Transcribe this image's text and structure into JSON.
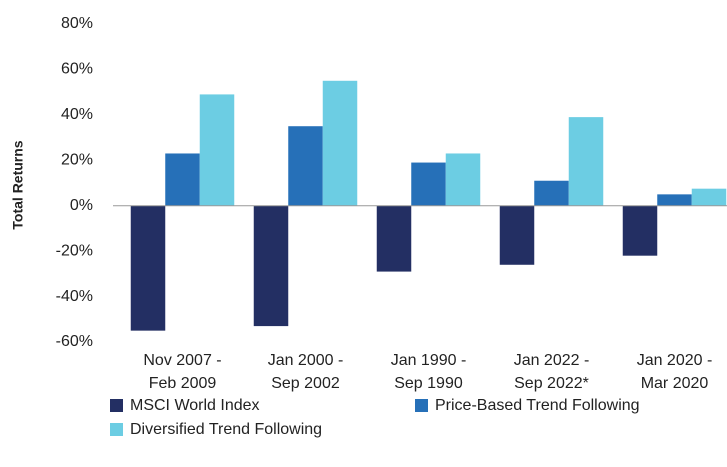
{
  "chart_data": {
    "type": "bar",
    "y_label": "Total Returns",
    "categories": [
      [
        "Nov 2007 -",
        "Feb 2009"
      ],
      [
        "Jan 2000 -",
        "Sep 2002"
      ],
      [
        "Jan 1990 -",
        "Sep 1990"
      ],
      [
        "Jan 2022 -",
        "Sep 2022*"
      ],
      [
        "Jan 2020 -",
        "Mar 2020"
      ]
    ],
    "series": [
      {
        "name": "MSCI World Index",
        "color": "#232f63",
        "values": [
          -55,
          -53,
          -29,
          -26,
          -22
        ]
      },
      {
        "name": "Price-Based Trend Following",
        "color": "#2670b8",
        "values": [
          23,
          35,
          19,
          11,
          5
        ]
      },
      {
        "name": "Diversified Trend Following",
        "color": "#6ccde3",
        "values": [
          49,
          55,
          23,
          39,
          7.5
        ]
      }
    ],
    "ylim": [
      -60,
      80
    ],
    "yticks": [
      {
        "value": -60,
        "label": "-60%"
      },
      {
        "value": -40,
        "label": "-40%"
      },
      {
        "value": -20,
        "label": "-20%"
      },
      {
        "value": 0,
        "label": "0%"
      },
      {
        "value": 20,
        "label": "20%"
      },
      {
        "value": 40,
        "label": "40%"
      },
      {
        "value": 60,
        "label": "60%"
      },
      {
        "value": 80,
        "label": "80%"
      }
    ],
    "grid": false,
    "legend": "bottom"
  }
}
